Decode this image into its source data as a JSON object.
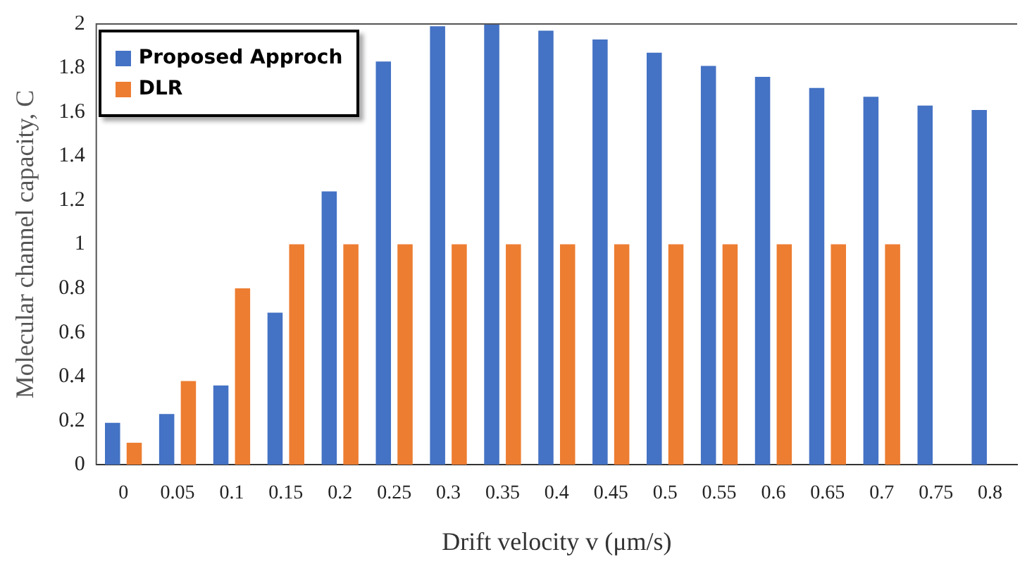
{
  "chart_data": {
    "type": "bar",
    "xlabel": "Drift velocity v (μm/s)",
    "ylabel": "Molecular channel capacity, C",
    "categories": [
      "0",
      "0.05",
      "0.1",
      "0.15",
      "0.2",
      "0.25",
      "0.3",
      "0.35",
      "0.4",
      "0.45",
      "0.5",
      "0.55",
      "0.6",
      "0.65",
      "0.7",
      "0.75",
      "0.8"
    ],
    "series": [
      {
        "name": "Proposed Approch",
        "color": "#4472c4",
        "values": [
          0.19,
          0.23,
          0.36,
          0.69,
          1.24,
          1.83,
          1.99,
          2.0,
          1.97,
          1.93,
          1.87,
          1.81,
          1.76,
          1.71,
          1.67,
          1.63,
          1.61
        ]
      },
      {
        "name": "DLR",
        "color": "#ed7d31",
        "values": [
          0.1,
          0.38,
          0.8,
          1,
          1,
          1,
          1,
          1,
          1,
          1,
          1,
          1,
          1,
          1,
          1,
          null,
          null
        ]
      }
    ],
    "ylim": [
      0,
      2
    ],
    "yticks": [
      0,
      0.2,
      0.4,
      0.6,
      0.8,
      1,
      1.2,
      1.4,
      1.6,
      1.8,
      2
    ],
    "grid": false,
    "legend": "top left"
  }
}
